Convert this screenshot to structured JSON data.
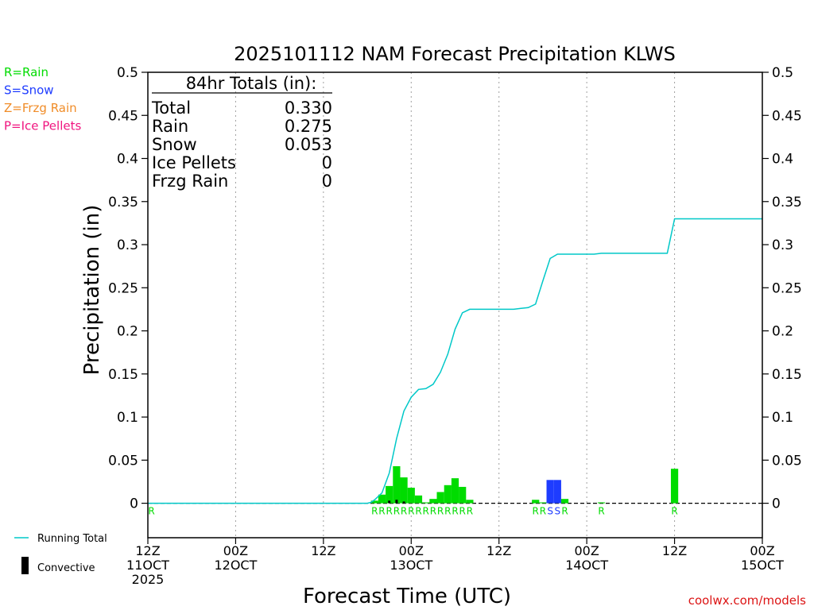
{
  "chart_data": {
    "type": "bar",
    "title": "2025101112 NAM Forecast Precipitation KLWS",
    "xlabel": "Forecast Time (UTC)",
    "ylabel": "Precipitation (in)",
    "ylim": [
      -0.04,
      0.5
    ],
    "y_ticks": [
      0,
      0.05,
      0.1,
      0.15,
      0.2,
      0.25,
      0.3,
      0.35,
      0.4,
      0.45,
      0.5
    ],
    "y_tick_labels": [
      "0",
      "0.05",
      "0.1",
      "0.15",
      "0.2",
      "0.25",
      "0.3",
      "0.35",
      "0.4",
      "0.45",
      "0.5"
    ],
    "xlim_hours": [
      0,
      84
    ],
    "x_ticks": [
      {
        "hour": 0,
        "line1": "12Z",
        "line2": "11OCT",
        "line3": "2025"
      },
      {
        "hour": 12,
        "line1": "00Z",
        "line2": "12OCT",
        "line3": ""
      },
      {
        "hour": 24,
        "line1": "12Z",
        "line2": "",
        "line3": ""
      },
      {
        "hour": 36,
        "line1": "00Z",
        "line2": "13OCT",
        "line3": ""
      },
      {
        "hour": 48,
        "line1": "12Z",
        "line2": "",
        "line3": ""
      },
      {
        "hour": 60,
        "line1": "00Z",
        "line2": "14OCT",
        "line3": ""
      },
      {
        "hour": 72,
        "line1": "12Z",
        "line2": "",
        "line3": ""
      },
      {
        "hour": 84,
        "line1": "00Z",
        "line2": "15OCT",
        "line3": ""
      }
    ],
    "gridlines_hours": [
      12,
      24,
      36,
      48,
      60,
      72
    ],
    "bars": [
      {
        "hour": 31,
        "value": 0.003,
        "ptype": "R"
      },
      {
        "hour": 32,
        "value": 0.01,
        "ptype": "R"
      },
      {
        "hour": 33,
        "value": 0.02,
        "ptype": "R"
      },
      {
        "hour": 34,
        "value": 0.043,
        "ptype": "R"
      },
      {
        "hour": 35,
        "value": 0.03,
        "ptype": "R"
      },
      {
        "hour": 36,
        "value": 0.018,
        "ptype": "R"
      },
      {
        "hour": 37,
        "value": 0.009,
        "ptype": "R"
      },
      {
        "hour": 38,
        "value": 0.001,
        "ptype": "R"
      },
      {
        "hour": 39,
        "value": 0.005,
        "ptype": "R"
      },
      {
        "hour": 40,
        "value": 0.013,
        "ptype": "R"
      },
      {
        "hour": 41,
        "value": 0.021,
        "ptype": "R"
      },
      {
        "hour": 42,
        "value": 0.029,
        "ptype": "R"
      },
      {
        "hour": 43,
        "value": 0.019,
        "ptype": "R"
      },
      {
        "hour": 44,
        "value": 0.004,
        "ptype": "R"
      },
      {
        "hour": 53,
        "value": 0.004,
        "ptype": "R"
      },
      {
        "hour": 54,
        "value": 0.001,
        "ptype": "R"
      },
      {
        "hour": 55,
        "value": 0.027,
        "ptype": "S"
      },
      {
        "hour": 56,
        "value": 0.027,
        "ptype": "S"
      },
      {
        "hour": 57,
        "value": 0.005,
        "ptype": "R"
      },
      {
        "hour": 62,
        "value": 0.001,
        "ptype": "R"
      },
      {
        "hour": 72,
        "value": 0.04,
        "ptype": "R"
      }
    ],
    "convective_bars": [
      {
        "hour": 33,
        "value": 0.003
      },
      {
        "hour": 34,
        "value": 0.004
      },
      {
        "hour": 35,
        "value": 0.002
      }
    ],
    "running_total": {
      "name": "Running Total",
      "hours": [
        0,
        30,
        30.5,
        31,
        32,
        33,
        34,
        35,
        36,
        37,
        38,
        39,
        40,
        41,
        42,
        43,
        44,
        45,
        46,
        47,
        48,
        49,
        50,
        51,
        52,
        53,
        54,
        55,
        56,
        57,
        58,
        59,
        60,
        61,
        62,
        63,
        64,
        65,
        66,
        67,
        68,
        69,
        70,
        71,
        71.5,
        72,
        84
      ],
      "values": [
        0,
        0,
        0.001,
        0.004,
        0.012,
        0.035,
        0.075,
        0.107,
        0.123,
        0.132,
        0.133,
        0.138,
        0.152,
        0.173,
        0.202,
        0.221,
        0.225,
        0.225,
        0.225,
        0.225,
        0.225,
        0.225,
        0.225,
        0.226,
        0.227,
        0.231,
        0.258,
        0.284,
        0.289,
        0.289,
        0.289,
        0.289,
        0.289,
        0.289,
        0.29,
        0.29,
        0.29,
        0.29,
        0.29,
        0.29,
        0.29,
        0.29,
        0.29,
        0.29,
        0.31,
        0.33,
        0.33
      ]
    },
    "type_labels": [
      {
        "hour": 0.5,
        "label": "R",
        "ptype": "R"
      },
      {
        "hour": 31,
        "label": "R",
        "ptype": "R"
      },
      {
        "hour": 32,
        "label": "R",
        "ptype": "R"
      },
      {
        "hour": 33,
        "label": "R",
        "ptype": "R"
      },
      {
        "hour": 34,
        "label": "R",
        "ptype": "R"
      },
      {
        "hour": 35,
        "label": "R",
        "ptype": "R"
      },
      {
        "hour": 36,
        "label": "R",
        "ptype": "R"
      },
      {
        "hour": 37,
        "label": "R",
        "ptype": "R"
      },
      {
        "hour": 38,
        "label": "R",
        "ptype": "R"
      },
      {
        "hour": 39,
        "label": "R",
        "ptype": "R"
      },
      {
        "hour": 40,
        "label": "R",
        "ptype": "R"
      },
      {
        "hour": 41,
        "label": "R",
        "ptype": "R"
      },
      {
        "hour": 42,
        "label": "R",
        "ptype": "R"
      },
      {
        "hour": 43,
        "label": "R",
        "ptype": "R"
      },
      {
        "hour": 44,
        "label": "R",
        "ptype": "R"
      },
      {
        "hour": 53,
        "label": "R",
        "ptype": "R"
      },
      {
        "hour": 54,
        "label": "R",
        "ptype": "R"
      },
      {
        "hour": 55,
        "label": "S",
        "ptype": "S"
      },
      {
        "hour": 56,
        "label": "S",
        "ptype": "S"
      },
      {
        "hour": 57,
        "label": "R",
        "ptype": "R"
      },
      {
        "hour": 62,
        "label": "R",
        "ptype": "R"
      },
      {
        "hour": 72,
        "label": "R",
        "ptype": "R"
      }
    ],
    "colors": {
      "rain": "#00dc00",
      "snow": "#1e3cff",
      "frzg_rain": "#f08c28",
      "ice_pellets": "#f0147f",
      "running_total": "#00c8c8",
      "convective": "#000000"
    },
    "totals_box": {
      "heading": "84hr Totals (in):",
      "rows": [
        {
          "label": "Total",
          "value": "0.330"
        },
        {
          "label": "Rain",
          "value": "0.275"
        },
        {
          "label": "Snow",
          "value": "0.053"
        },
        {
          "label": "Ice Pellets",
          "value": "0"
        },
        {
          "label": "Frzg Rain",
          "value": "0"
        }
      ]
    },
    "type_legend": [
      {
        "text": "R=Rain",
        "ptype": "R"
      },
      {
        "text": "S=Snow",
        "ptype": "S"
      },
      {
        "text": "Z=Frzg Rain",
        "ptype": "Z"
      },
      {
        "text": "P=Ice Pellets",
        "ptype": "P"
      }
    ],
    "bottom_legend": {
      "running_total_label": "Running Total",
      "convective_label": "Convective"
    },
    "credit": "coolwx.com/models"
  }
}
